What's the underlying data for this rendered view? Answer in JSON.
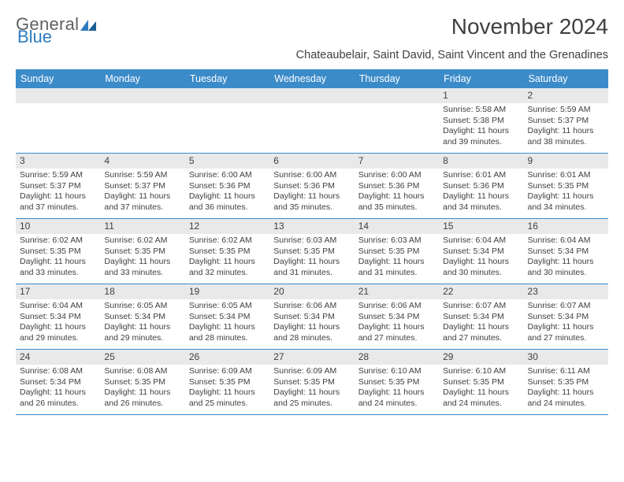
{
  "logo": {
    "text1": "General",
    "text2": "Blue"
  },
  "title": "November 2024",
  "subtitle": "Chateaubelair, Saint David, Saint Vincent and the Grenadines",
  "colors": {
    "header_bg": "#3b8bc9",
    "header_text": "#ffffff",
    "daynum_bg": "#e9e9e9",
    "text": "#404040",
    "week_border": "#3b8bc9",
    "page_bg": "#ffffff",
    "logo_gray": "#606060",
    "logo_blue": "#2f7bbf"
  },
  "day_names": [
    "Sunday",
    "Monday",
    "Tuesday",
    "Wednesday",
    "Thursday",
    "Friday",
    "Saturday"
  ],
  "weeks": [
    [
      {
        "day": "",
        "sunrise": "",
        "sunset": "",
        "daylight1": "",
        "daylight2": ""
      },
      {
        "day": "",
        "sunrise": "",
        "sunset": "",
        "daylight1": "",
        "daylight2": ""
      },
      {
        "day": "",
        "sunrise": "",
        "sunset": "",
        "daylight1": "",
        "daylight2": ""
      },
      {
        "day": "",
        "sunrise": "",
        "sunset": "",
        "daylight1": "",
        "daylight2": ""
      },
      {
        "day": "",
        "sunrise": "",
        "sunset": "",
        "daylight1": "",
        "daylight2": ""
      },
      {
        "day": "1",
        "sunrise": "Sunrise: 5:58 AM",
        "sunset": "Sunset: 5:38 PM",
        "daylight1": "Daylight: 11 hours",
        "daylight2": "and 39 minutes."
      },
      {
        "day": "2",
        "sunrise": "Sunrise: 5:59 AM",
        "sunset": "Sunset: 5:37 PM",
        "daylight1": "Daylight: 11 hours",
        "daylight2": "and 38 minutes."
      }
    ],
    [
      {
        "day": "3",
        "sunrise": "Sunrise: 5:59 AM",
        "sunset": "Sunset: 5:37 PM",
        "daylight1": "Daylight: 11 hours",
        "daylight2": "and 37 minutes."
      },
      {
        "day": "4",
        "sunrise": "Sunrise: 5:59 AM",
        "sunset": "Sunset: 5:37 PM",
        "daylight1": "Daylight: 11 hours",
        "daylight2": "and 37 minutes."
      },
      {
        "day": "5",
        "sunrise": "Sunrise: 6:00 AM",
        "sunset": "Sunset: 5:36 PM",
        "daylight1": "Daylight: 11 hours",
        "daylight2": "and 36 minutes."
      },
      {
        "day": "6",
        "sunrise": "Sunrise: 6:00 AM",
        "sunset": "Sunset: 5:36 PM",
        "daylight1": "Daylight: 11 hours",
        "daylight2": "and 35 minutes."
      },
      {
        "day": "7",
        "sunrise": "Sunrise: 6:00 AM",
        "sunset": "Sunset: 5:36 PM",
        "daylight1": "Daylight: 11 hours",
        "daylight2": "and 35 minutes."
      },
      {
        "day": "8",
        "sunrise": "Sunrise: 6:01 AM",
        "sunset": "Sunset: 5:36 PM",
        "daylight1": "Daylight: 11 hours",
        "daylight2": "and 34 minutes."
      },
      {
        "day": "9",
        "sunrise": "Sunrise: 6:01 AM",
        "sunset": "Sunset: 5:35 PM",
        "daylight1": "Daylight: 11 hours",
        "daylight2": "and 34 minutes."
      }
    ],
    [
      {
        "day": "10",
        "sunrise": "Sunrise: 6:02 AM",
        "sunset": "Sunset: 5:35 PM",
        "daylight1": "Daylight: 11 hours",
        "daylight2": "and 33 minutes."
      },
      {
        "day": "11",
        "sunrise": "Sunrise: 6:02 AM",
        "sunset": "Sunset: 5:35 PM",
        "daylight1": "Daylight: 11 hours",
        "daylight2": "and 33 minutes."
      },
      {
        "day": "12",
        "sunrise": "Sunrise: 6:02 AM",
        "sunset": "Sunset: 5:35 PM",
        "daylight1": "Daylight: 11 hours",
        "daylight2": "and 32 minutes."
      },
      {
        "day": "13",
        "sunrise": "Sunrise: 6:03 AM",
        "sunset": "Sunset: 5:35 PM",
        "daylight1": "Daylight: 11 hours",
        "daylight2": "and 31 minutes."
      },
      {
        "day": "14",
        "sunrise": "Sunrise: 6:03 AM",
        "sunset": "Sunset: 5:35 PM",
        "daylight1": "Daylight: 11 hours",
        "daylight2": "and 31 minutes."
      },
      {
        "day": "15",
        "sunrise": "Sunrise: 6:04 AM",
        "sunset": "Sunset: 5:34 PM",
        "daylight1": "Daylight: 11 hours",
        "daylight2": "and 30 minutes."
      },
      {
        "day": "16",
        "sunrise": "Sunrise: 6:04 AM",
        "sunset": "Sunset: 5:34 PM",
        "daylight1": "Daylight: 11 hours",
        "daylight2": "and 30 minutes."
      }
    ],
    [
      {
        "day": "17",
        "sunrise": "Sunrise: 6:04 AM",
        "sunset": "Sunset: 5:34 PM",
        "daylight1": "Daylight: 11 hours",
        "daylight2": "and 29 minutes."
      },
      {
        "day": "18",
        "sunrise": "Sunrise: 6:05 AM",
        "sunset": "Sunset: 5:34 PM",
        "daylight1": "Daylight: 11 hours",
        "daylight2": "and 29 minutes."
      },
      {
        "day": "19",
        "sunrise": "Sunrise: 6:05 AM",
        "sunset": "Sunset: 5:34 PM",
        "daylight1": "Daylight: 11 hours",
        "daylight2": "and 28 minutes."
      },
      {
        "day": "20",
        "sunrise": "Sunrise: 6:06 AM",
        "sunset": "Sunset: 5:34 PM",
        "daylight1": "Daylight: 11 hours",
        "daylight2": "and 28 minutes."
      },
      {
        "day": "21",
        "sunrise": "Sunrise: 6:06 AM",
        "sunset": "Sunset: 5:34 PM",
        "daylight1": "Daylight: 11 hours",
        "daylight2": "and 27 minutes."
      },
      {
        "day": "22",
        "sunrise": "Sunrise: 6:07 AM",
        "sunset": "Sunset: 5:34 PM",
        "daylight1": "Daylight: 11 hours",
        "daylight2": "and 27 minutes."
      },
      {
        "day": "23",
        "sunrise": "Sunrise: 6:07 AM",
        "sunset": "Sunset: 5:34 PM",
        "daylight1": "Daylight: 11 hours",
        "daylight2": "and 27 minutes."
      }
    ],
    [
      {
        "day": "24",
        "sunrise": "Sunrise: 6:08 AM",
        "sunset": "Sunset: 5:34 PM",
        "daylight1": "Daylight: 11 hours",
        "daylight2": "and 26 minutes."
      },
      {
        "day": "25",
        "sunrise": "Sunrise: 6:08 AM",
        "sunset": "Sunset: 5:35 PM",
        "daylight1": "Daylight: 11 hours",
        "daylight2": "and 26 minutes."
      },
      {
        "day": "26",
        "sunrise": "Sunrise: 6:09 AM",
        "sunset": "Sunset: 5:35 PM",
        "daylight1": "Daylight: 11 hours",
        "daylight2": "and 25 minutes."
      },
      {
        "day": "27",
        "sunrise": "Sunrise: 6:09 AM",
        "sunset": "Sunset: 5:35 PM",
        "daylight1": "Daylight: 11 hours",
        "daylight2": "and 25 minutes."
      },
      {
        "day": "28",
        "sunrise": "Sunrise: 6:10 AM",
        "sunset": "Sunset: 5:35 PM",
        "daylight1": "Daylight: 11 hours",
        "daylight2": "and 24 minutes."
      },
      {
        "day": "29",
        "sunrise": "Sunrise: 6:10 AM",
        "sunset": "Sunset: 5:35 PM",
        "daylight1": "Daylight: 11 hours",
        "daylight2": "and 24 minutes."
      },
      {
        "day": "30",
        "sunrise": "Sunrise: 6:11 AM",
        "sunset": "Sunset: 5:35 PM",
        "daylight1": "Daylight: 11 hours",
        "daylight2": "and 24 minutes."
      }
    ]
  ]
}
